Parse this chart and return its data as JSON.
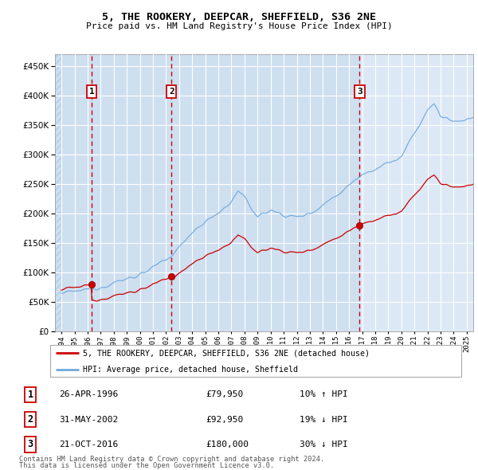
{
  "title": "5, THE ROOKERY, DEEPCAR, SHEFFIELD, S36 2NE",
  "subtitle": "Price paid vs. HM Land Registry's House Price Index (HPI)",
  "footer1": "Contains HM Land Registry data © Crown copyright and database right 2024.",
  "footer2": "This data is licensed under the Open Government Licence v3.0.",
  "legend_red": "5, THE ROOKERY, DEEPCAR, SHEFFIELD, S36 2NE (detached house)",
  "legend_blue": "HPI: Average price, detached house, Sheffield",
  "transactions": [
    {
      "num": 1,
      "date": "26-APR-1996",
      "price": 79950,
      "hpi_diff": "10%",
      "dir": "↑"
    },
    {
      "num": 2,
      "date": "31-MAY-2002",
      "price": 92950,
      "hpi_diff": "19%",
      "dir": "↓"
    },
    {
      "num": 3,
      "date": "21-OCT-2016",
      "price": 180000,
      "hpi_diff": "30%",
      "dir": "↓"
    }
  ],
  "transaction_years": [
    1996.32,
    2002.42,
    2016.81
  ],
  "transaction_prices": [
    79950,
    92950,
    180000
  ],
  "hpi_color": "#6fa8dc",
  "price_color": "#cc0000",
  "dashed_line_color": "#cc0000",
  "background_plot": "#dce8f5",
  "background_figure": "#ffffff",
  "grid_color": "#ffffff",
  "shade_color": "#c5d9ee",
  "ylim": [
    0,
    470000
  ],
  "yticks": [
    0,
    50000,
    100000,
    150000,
    200000,
    250000,
    300000,
    350000,
    400000,
    450000
  ],
  "xlim_start": 1993.5,
  "xlim_end": 2025.5
}
